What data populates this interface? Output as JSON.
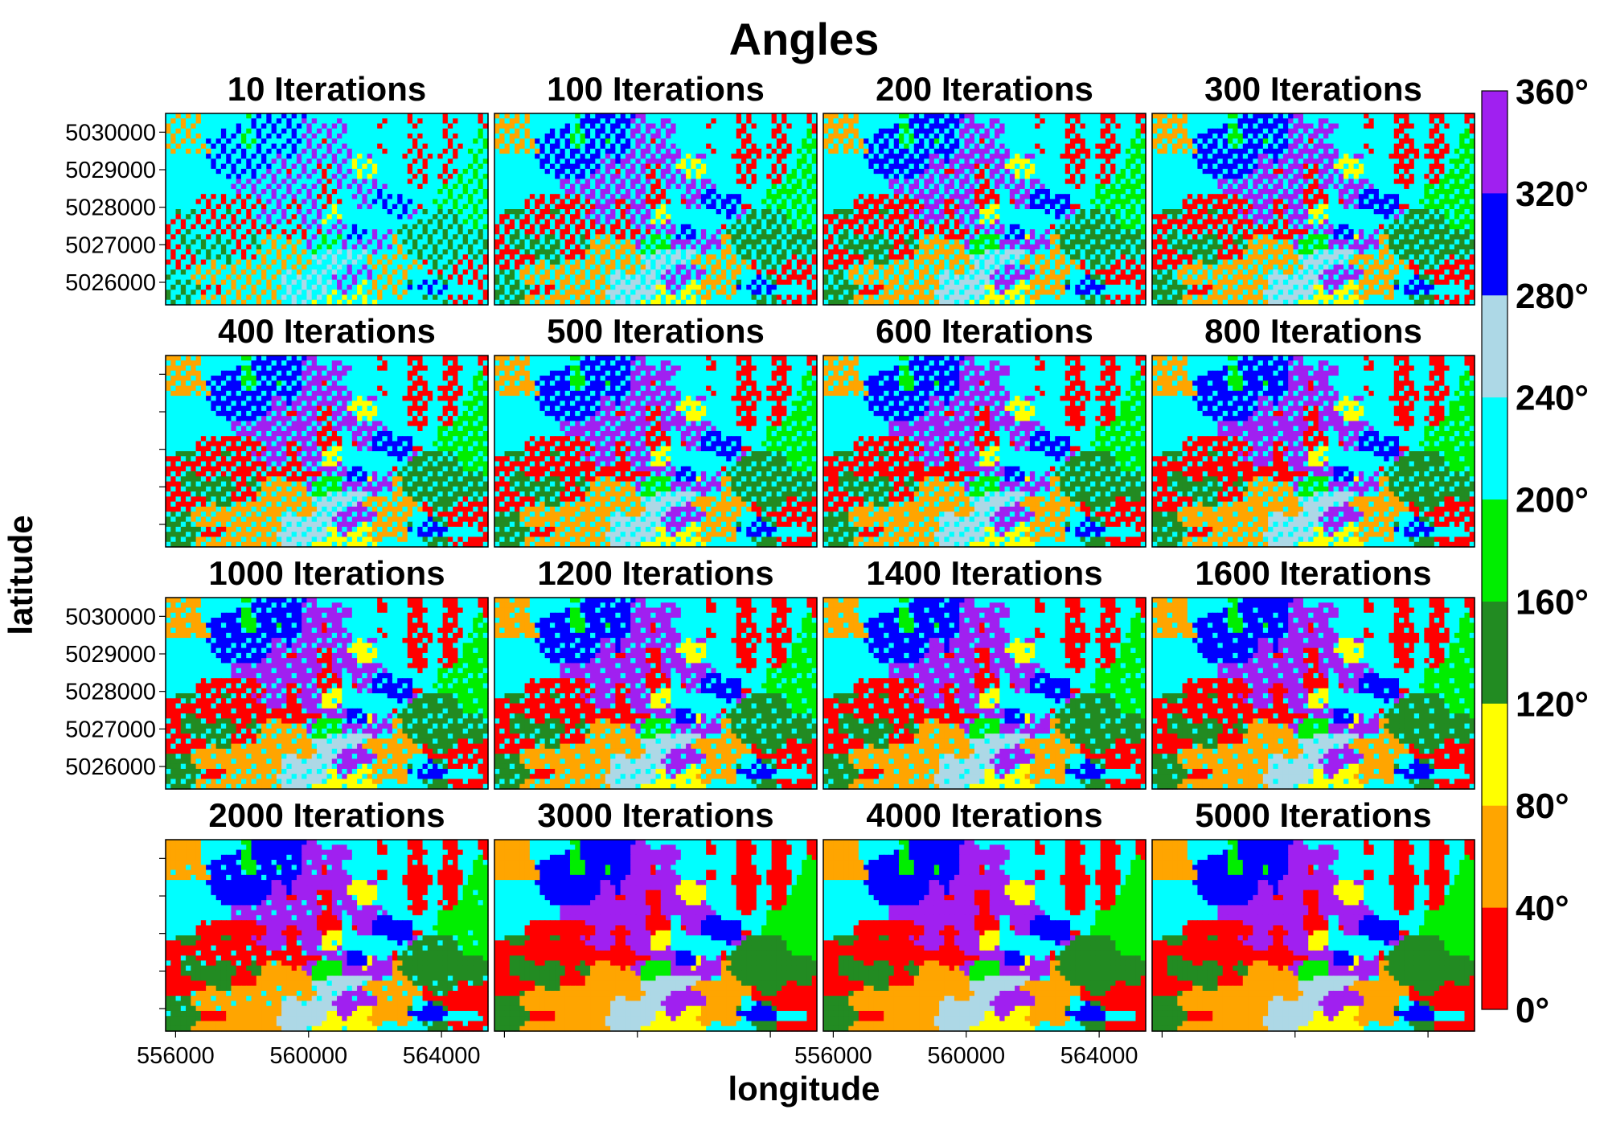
{
  "chart_data": {
    "type": "heatmap",
    "title": "Angles",
    "xlabel": "longitude",
    "ylabel": "latitude",
    "layout": {
      "rows": 4,
      "cols": 4
    },
    "panels": [
      {
        "label": "10 Iterations",
        "iterations": 10
      },
      {
        "label": "100 Iterations",
        "iterations": 100
      },
      {
        "label": "200 Iterations",
        "iterations": 200
      },
      {
        "label": "300 Iterations",
        "iterations": 300
      },
      {
        "label": "400 Iterations",
        "iterations": 400
      },
      {
        "label": "500 Iterations",
        "iterations": 500
      },
      {
        "label": "600 Iterations",
        "iterations": 600
      },
      {
        "label": "800 Iterations",
        "iterations": 800
      },
      {
        "label": "1000 Iterations",
        "iterations": 1000
      },
      {
        "label": "1200 Iterations",
        "iterations": 1200
      },
      {
        "label": "1400 Iterations",
        "iterations": 1400
      },
      {
        "label": "1600 Iterations",
        "iterations": 1600
      },
      {
        "label": "2000 Iterations",
        "iterations": 2000
      },
      {
        "label": "3000 Iterations",
        "iterations": 3000
      },
      {
        "label": "4000 Iterations",
        "iterations": 4000
      },
      {
        "label": "5000 Iterations",
        "iterations": 5000
      }
    ],
    "x_ticks": [
      556000,
      560000,
      564000
    ],
    "x_tick_labels": [
      "556000",
      "560000",
      "564000"
    ],
    "y_ticks": [
      5026000,
      5027000,
      5028000,
      5029000,
      5030000
    ],
    "y_tick_labels": [
      "5026000",
      "5027000",
      "5028000",
      "5029000",
      "5030000"
    ],
    "xlim": [
      555700,
      565400
    ],
    "ylim": [
      5025400,
      5030500
    ],
    "colorbar": {
      "breaks": [
        0,
        40,
        80,
        120,
        160,
        200,
        240,
        280,
        320,
        360
      ],
      "labels": [
        "0°",
        "40°",
        "80°",
        "120°",
        "160°",
        "200°",
        "240°",
        "280°",
        "320°",
        "360°"
      ],
      "colors": [
        "#ff0000",
        "#ffa500",
        "#ffff00",
        "#228b22",
        "#00ee00",
        "#00ffff",
        "#add8e6",
        "#0000ff",
        "#a020f0"
      ]
    }
  }
}
